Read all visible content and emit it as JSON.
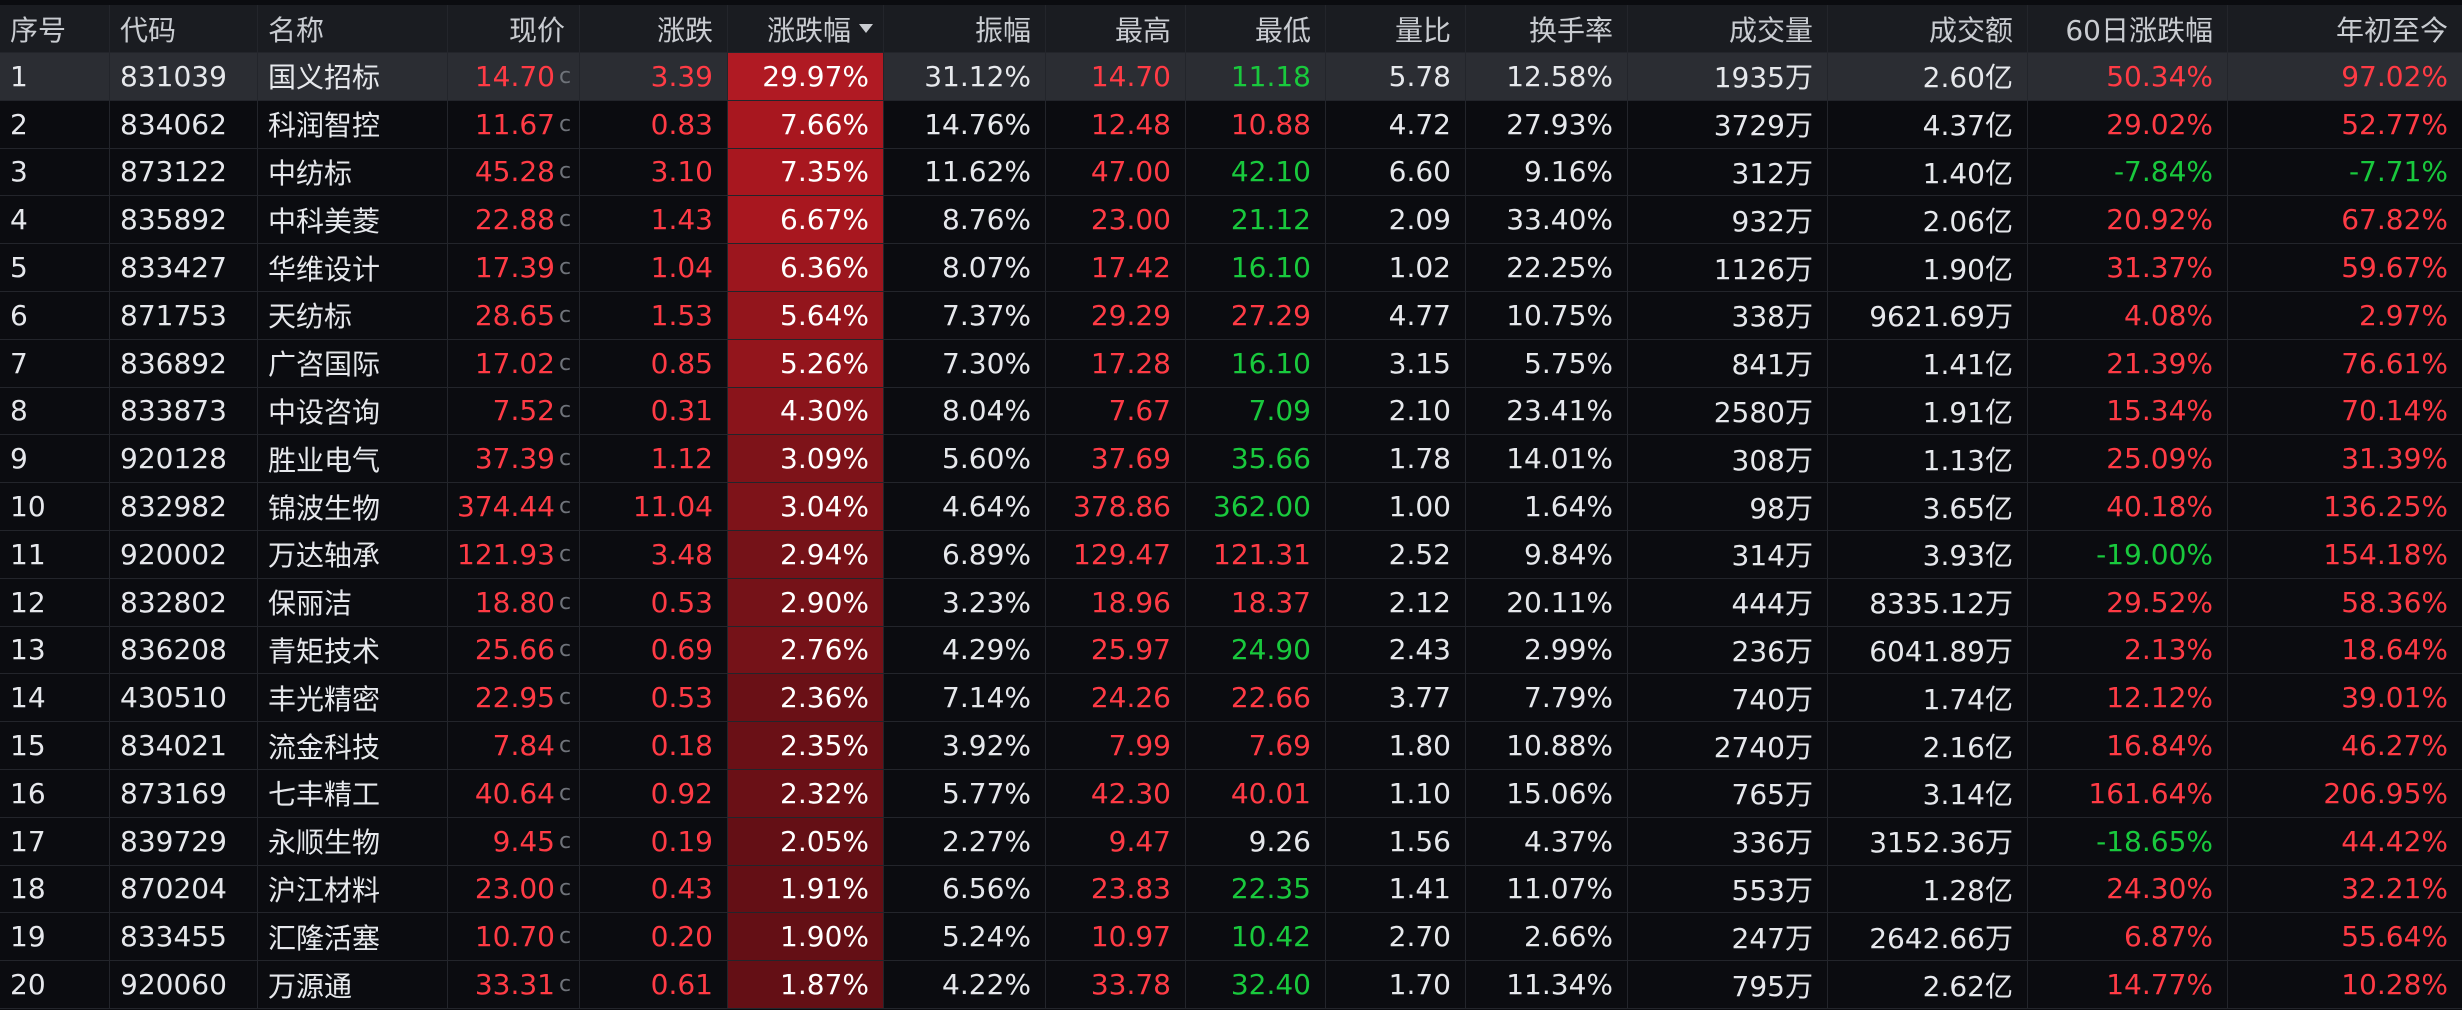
{
  "headers": {
    "seq": "序号",
    "code": "代码",
    "name": "名称",
    "price": "现价",
    "change": "涨跌",
    "pct": "涨跌幅",
    "amp": "振幅",
    "high": "最高",
    "low": "最低",
    "vr": "量比",
    "turnover": "换手率",
    "volume": "成交量",
    "amount": "成交额",
    "d60": "60日涨跌幅",
    "ytd": "年初至今"
  },
  "sort": {
    "column": "pct",
    "direction": "desc",
    "icon": "sort-down-icon"
  },
  "colors": {
    "up": "#ff3b45",
    "down": "#19c93d",
    "neutral": "#e6e8ec",
    "pct_bg": [
      "#b01a23",
      "#a8171f",
      "#9c161e",
      "#93151c",
      "#8a141b",
      "#7e1319",
      "#751218",
      "#6a1016",
      "#640f15"
    ]
  },
  "rows": [
    {
      "seq": "1",
      "code": "831039",
      "name": "国义招标",
      "price": "14.70",
      "pc": "c",
      "change": "3.39",
      "pct": "29.97%",
      "amp": "31.12%",
      "high": "14.70",
      "low": "11.18",
      "vr": "5.78",
      "turnover": "12.58%",
      "volume": "1935万",
      "amount": "2.60亿",
      "d60": "50.34%",
      "ytd": "97.02%",
      "lowDir": "down",
      "d60Dir": "up",
      "ytdDir": "up",
      "pctShade": 0,
      "selected": true
    },
    {
      "seq": "2",
      "code": "834062",
      "name": "科润智控",
      "price": "11.67",
      "pc": "c",
      "change": "0.83",
      "pct": "7.66%",
      "amp": "14.76%",
      "high": "12.48",
      "low": "10.88",
      "vr": "4.72",
      "turnover": "27.93%",
      "volume": "3729万",
      "amount": "4.37亿",
      "d60": "29.02%",
      "ytd": "52.77%",
      "lowDir": "up",
      "d60Dir": "up",
      "ytdDir": "up",
      "pctShade": 1
    },
    {
      "seq": "3",
      "code": "873122",
      "name": "中纺标",
      "price": "45.28",
      "pc": "c",
      "change": "3.10",
      "pct": "7.35%",
      "amp": "11.62%",
      "high": "47.00",
      "low": "42.10",
      "vr": "6.60",
      "turnover": "9.16%",
      "volume": "312万",
      "amount": "1.40亿",
      "d60": "-7.84%",
      "ytd": "-7.71%",
      "lowDir": "down",
      "d60Dir": "down",
      "ytdDir": "down",
      "pctShade": 1
    },
    {
      "seq": "4",
      "code": "835892",
      "name": "中科美菱",
      "price": "22.88",
      "pc": "c",
      "change": "1.43",
      "pct": "6.67%",
      "amp": "8.76%",
      "high": "23.00",
      "low": "21.12",
      "vr": "2.09",
      "turnover": "33.40%",
      "volume": "932万",
      "amount": "2.06亿",
      "d60": "20.92%",
      "ytd": "67.82%",
      "lowDir": "down",
      "d60Dir": "up",
      "ytdDir": "up",
      "pctShade": 1
    },
    {
      "seq": "5",
      "code": "833427",
      "name": "华维设计",
      "price": "17.39",
      "pc": "c",
      "change": "1.04",
      "pct": "6.36%",
      "amp": "8.07%",
      "high": "17.42",
      "low": "16.10",
      "vr": "1.02",
      "turnover": "22.25%",
      "volume": "1126万",
      "amount": "1.90亿",
      "d60": "31.37%",
      "ytd": "59.67%",
      "lowDir": "down",
      "d60Dir": "up",
      "ytdDir": "up",
      "pctShade": 2
    },
    {
      "seq": "6",
      "code": "871753",
      "name": "天纺标",
      "price": "28.65",
      "pc": "c",
      "change": "1.53",
      "pct": "5.64%",
      "amp": "7.37%",
      "high": "29.29",
      "low": "27.29",
      "vr": "4.77",
      "turnover": "10.75%",
      "volume": "338万",
      "amount": "9621.69万",
      "d60": "4.08%",
      "ytd": "2.97%",
      "lowDir": "up",
      "d60Dir": "up",
      "ytdDir": "up",
      "pctShade": 3
    },
    {
      "seq": "7",
      "code": "836892",
      "name": "广咨国际",
      "price": "17.02",
      "pc": "c",
      "change": "0.85",
      "pct": "5.26%",
      "amp": "7.30%",
      "high": "17.28",
      "low": "16.10",
      "vr": "3.15",
      "turnover": "5.75%",
      "volume": "841万",
      "amount": "1.41亿",
      "d60": "21.39%",
      "ytd": "76.61%",
      "lowDir": "down",
      "d60Dir": "up",
      "ytdDir": "up",
      "pctShade": 3
    },
    {
      "seq": "8",
      "code": "833873",
      "name": "中设咨询",
      "price": "7.52",
      "pc": "c",
      "change": "0.31",
      "pct": "4.30%",
      "amp": "8.04%",
      "high": "7.67",
      "low": "7.09",
      "vr": "2.10",
      "turnover": "23.41%",
      "volume": "2580万",
      "amount": "1.91亿",
      "d60": "15.34%",
      "ytd": "70.14%",
      "lowDir": "down",
      "d60Dir": "up",
      "ytdDir": "up",
      "pctShade": 4
    },
    {
      "seq": "9",
      "code": "920128",
      "name": "胜业电气",
      "price": "37.39",
      "pc": "c",
      "change": "1.12",
      "pct": "3.09%",
      "amp": "5.60%",
      "high": "37.69",
      "low": "35.66",
      "vr": "1.78",
      "turnover": "14.01%",
      "volume": "308万",
      "amount": "1.13亿",
      "d60": "25.09%",
      "ytd": "31.39%",
      "lowDir": "down",
      "d60Dir": "up",
      "ytdDir": "up",
      "pctShade": 5
    },
    {
      "seq": "10",
      "code": "832982",
      "name": "锦波生物",
      "price": "374.44",
      "pc": "c",
      "change": "11.04",
      "pct": "3.04%",
      "amp": "4.64%",
      "high": "378.86",
      "low": "362.00",
      "vr": "1.00",
      "turnover": "1.64%",
      "volume": "98万",
      "amount": "3.65亿",
      "d60": "40.18%",
      "ytd": "136.25%",
      "lowDir": "down",
      "d60Dir": "up",
      "ytdDir": "up",
      "pctShade": 5
    },
    {
      "seq": "11",
      "code": "920002",
      "name": "万达轴承",
      "price": "121.93",
      "pc": "c",
      "change": "3.48",
      "pct": "2.94%",
      "amp": "6.89%",
      "high": "129.47",
      "low": "121.31",
      "vr": "2.52",
      "turnover": "9.84%",
      "volume": "314万",
      "amount": "3.93亿",
      "d60": "-19.00%",
      "ytd": "154.18%",
      "lowDir": "up",
      "d60Dir": "down",
      "ytdDir": "up",
      "pctShade": 6
    },
    {
      "seq": "12",
      "code": "832802",
      "name": "保丽洁",
      "price": "18.80",
      "pc": "c",
      "change": "0.53",
      "pct": "2.90%",
      "amp": "3.23%",
      "high": "18.96",
      "low": "18.37",
      "vr": "2.12",
      "turnover": "20.11%",
      "volume": "444万",
      "amount": "8335.12万",
      "d60": "29.52%",
      "ytd": "58.36%",
      "lowDir": "up",
      "d60Dir": "up",
      "ytdDir": "up",
      "pctShade": 6
    },
    {
      "seq": "13",
      "code": "836208",
      "name": "青矩技术",
      "price": "25.66",
      "pc": "c",
      "change": "0.69",
      "pct": "2.76%",
      "amp": "4.29%",
      "high": "25.97",
      "low": "24.90",
      "vr": "2.43",
      "turnover": "2.99%",
      "volume": "236万",
      "amount": "6041.89万",
      "d60": "2.13%",
      "ytd": "18.64%",
      "lowDir": "down",
      "d60Dir": "up",
      "ytdDir": "up",
      "pctShade": 6
    },
    {
      "seq": "14",
      "code": "430510",
      "name": "丰光精密",
      "price": "22.95",
      "pc": "c",
      "change": "0.53",
      "pct": "2.36%",
      "amp": "7.14%",
      "high": "24.26",
      "low": "22.66",
      "vr": "3.77",
      "turnover": "7.79%",
      "volume": "740万",
      "amount": "1.74亿",
      "d60": "12.12%",
      "ytd": "39.01%",
      "lowDir": "up",
      "d60Dir": "up",
      "ytdDir": "up",
      "pctShade": 7
    },
    {
      "seq": "15",
      "code": "834021",
      "name": "流金科技",
      "price": "7.84",
      "pc": "c",
      "change": "0.18",
      "pct": "2.35%",
      "amp": "3.92%",
      "high": "7.99",
      "low": "7.69",
      "vr": "1.80",
      "turnover": "10.88%",
      "volume": "2740万",
      "amount": "2.16亿",
      "d60": "16.84%",
      "ytd": "46.27%",
      "lowDir": "up",
      "d60Dir": "up",
      "ytdDir": "up",
      "pctShade": 7
    },
    {
      "seq": "16",
      "code": "873169",
      "name": "七丰精工",
      "price": "40.64",
      "pc": "c",
      "change": "0.92",
      "pct": "2.32%",
      "amp": "5.77%",
      "high": "42.30",
      "low": "40.01",
      "vr": "1.10",
      "turnover": "15.06%",
      "volume": "765万",
      "amount": "3.14亿",
      "d60": "161.64%",
      "ytd": "206.95%",
      "lowDir": "up",
      "d60Dir": "up",
      "ytdDir": "up",
      "pctShade": 7
    },
    {
      "seq": "17",
      "code": "839729",
      "name": "永顺生物",
      "price": "9.45",
      "pc": "c",
      "change": "0.19",
      "pct": "2.05%",
      "amp": "2.27%",
      "high": "9.47",
      "low": "9.26",
      "vr": "1.56",
      "turnover": "4.37%",
      "volume": "336万",
      "amount": "3152.36万",
      "d60": "-18.65%",
      "ytd": "44.42%",
      "lowDir": "neutral",
      "d60Dir": "down",
      "ytdDir": "up",
      "pctShade": 8
    },
    {
      "seq": "18",
      "code": "870204",
      "name": "沪江材料",
      "price": "23.00",
      "pc": "c",
      "change": "0.43",
      "pct": "1.91%",
      "amp": "6.56%",
      "high": "23.83",
      "low": "22.35",
      "vr": "1.41",
      "turnover": "11.07%",
      "volume": "553万",
      "amount": "1.28亿",
      "d60": "24.30%",
      "ytd": "32.21%",
      "lowDir": "down",
      "d60Dir": "up",
      "ytdDir": "up",
      "pctShade": 8
    },
    {
      "seq": "19",
      "code": "833455",
      "name": "汇隆活塞",
      "price": "10.70",
      "pc": "c",
      "change": "0.20",
      "pct": "1.90%",
      "amp": "5.24%",
      "high": "10.97",
      "low": "10.42",
      "vr": "2.70",
      "turnover": "2.66%",
      "volume": "247万",
      "amount": "2642.66万",
      "d60": "6.87%",
      "ytd": "55.64%",
      "lowDir": "down",
      "d60Dir": "up",
      "ytdDir": "up",
      "pctShade": 8
    },
    {
      "seq": "20",
      "code": "920060",
      "name": "万源通",
      "price": "33.31",
      "pc": "c",
      "change": "0.61",
      "pct": "1.87%",
      "amp": "4.22%",
      "high": "33.78",
      "low": "32.40",
      "vr": "1.70",
      "turnover": "11.34%",
      "volume": "795万",
      "amount": "2.62亿",
      "d60": "14.77%",
      "ytd": "10.28%",
      "lowDir": "down",
      "d60Dir": "up",
      "ytdDir": "up",
      "pctShade": 8
    }
  ]
}
